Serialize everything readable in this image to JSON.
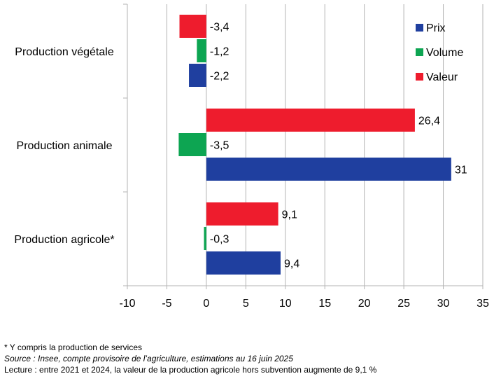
{
  "chart_data": {
    "type": "bar",
    "orientation": "horizontal",
    "categories": [
      "Production végétale",
      "Production animale",
      "Production agricole*"
    ],
    "series": [
      {
        "name": "Prix",
        "color": "#1f3f9f",
        "values": [
          -2.2,
          31,
          9.4
        ],
        "labels": [
          "-2,2",
          "31",
          "9,4"
        ]
      },
      {
        "name": "Volume",
        "color": "#0da552",
        "values": [
          -1.2,
          -3.5,
          -0.3
        ],
        "labels": [
          "-1,2",
          "-3,5",
          "-0,3"
        ]
      },
      {
        "name": "Valeur",
        "color": "#ee1c2d",
        "values": [
          -3.4,
          26.4,
          9.1
        ],
        "labels": [
          "-3,4",
          "26,4",
          "9,1"
        ]
      }
    ],
    "xlim": [
      -10,
      35
    ],
    "xticks": [
      -10,
      -5,
      0,
      5,
      10,
      15,
      20,
      25,
      30,
      35
    ],
    "grid": true,
    "legend_position": "top-right"
  },
  "notes": {
    "footnote": "*  Y compris la production de services",
    "source": "Source : Insee, compte provisoire de l’agriculture, estimations au 16 juin 2025",
    "reading": "Lecture : entre 2021 et 2024, la valeur de la production agricole hors subvention augmente de 9,1 %"
  }
}
